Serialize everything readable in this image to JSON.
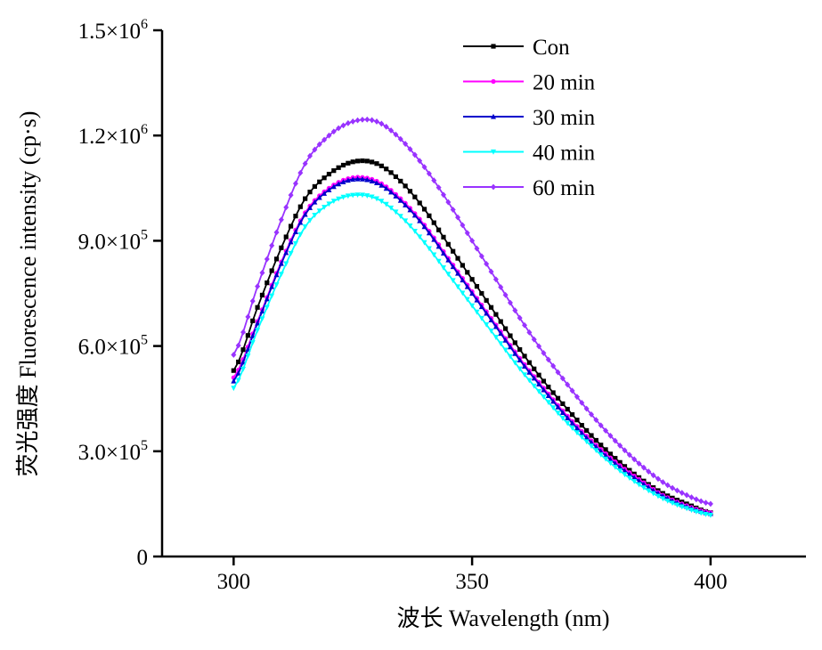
{
  "chart_data": {
    "type": "line",
    "title": "",
    "xlabel": "波长 Wavelength (nm)",
    "ylabel": "荧光强度 Fluorescence intensity (cp·s)",
    "xlim": [
      285,
      420
    ],
    "ylim": [
      0,
      1500000
    ],
    "x_ticks": [
      300,
      350,
      400
    ],
    "x_tick_labels": [
      "300",
      "350",
      "400"
    ],
    "y_ticks": [
      0,
      300000,
      600000,
      900000,
      1200000,
      1500000
    ],
    "y_tick_labels": [
      {
        "mantissa": "0",
        "exponent": ""
      },
      {
        "mantissa": "3.0×10",
        "exponent": "5"
      },
      {
        "mantissa": "6.0×10",
        "exponent": "5"
      },
      {
        "mantissa": "9.0×10",
        "exponent": "5"
      },
      {
        "mantissa": "1.2×10",
        "exponent": "6"
      },
      {
        "mantissa": "1.5×10",
        "exponent": "6"
      }
    ],
    "grid": false,
    "legend_position": "top-right",
    "x": [
      300,
      305,
      310,
      315,
      320,
      325,
      330,
      335,
      340,
      345,
      350,
      355,
      360,
      365,
      370,
      375,
      380,
      385,
      390,
      395,
      400
    ],
    "series": [
      {
        "name": "Con",
        "color": "#000000",
        "marker": "square",
        "values": [
          530000,
          710000,
          880000,
          1020000,
          1090000,
          1125000,
          1120000,
          1070000,
          990000,
          890000,
          790000,
          690000,
          590000,
          500000,
          420000,
          345000,
          280000,
          225000,
          180000,
          150000,
          125000
        ]
      },
      {
        "name": "20 min",
        "color": "#ff00ff",
        "marker": "circle",
        "values": [
          510000,
          670000,
          840000,
          980000,
          1050000,
          1080000,
          1070000,
          1020000,
          945000,
          850000,
          755000,
          660000,
          565000,
          480000,
          400000,
          330000,
          270000,
          220000,
          175000,
          145000,
          125000
        ]
      },
      {
        "name": "30 min",
        "color": "#0000cc",
        "marker": "triangle",
        "values": [
          500000,
          665000,
          835000,
          975000,
          1045000,
          1075000,
          1065000,
          1015000,
          940000,
          845000,
          750000,
          655000,
          560000,
          475000,
          395000,
          325000,
          265000,
          215000,
          172000,
          142000,
          122000
        ]
      },
      {
        "name": "40 min",
        "color": "#00ffff",
        "marker": "triangle-down",
        "values": [
          480000,
          645000,
          805000,
          940000,
          1005000,
          1030000,
          1020000,
          970000,
          895000,
          805000,
          715000,
          625000,
          535000,
          455000,
          380000,
          315000,
          255000,
          205000,
          165000,
          137000,
          118000
        ]
      },
      {
        "name": "60 min",
        "color": "#9933ff",
        "marker": "diamond",
        "values": [
          575000,
          770000,
          960000,
          1120000,
          1200000,
          1240000,
          1240000,
          1190000,
          1110000,
          1010000,
          900000,
          790000,
          680000,
          580000,
          490000,
          405000,
          330000,
          265000,
          212000,
          175000,
          150000
        ]
      }
    ]
  }
}
